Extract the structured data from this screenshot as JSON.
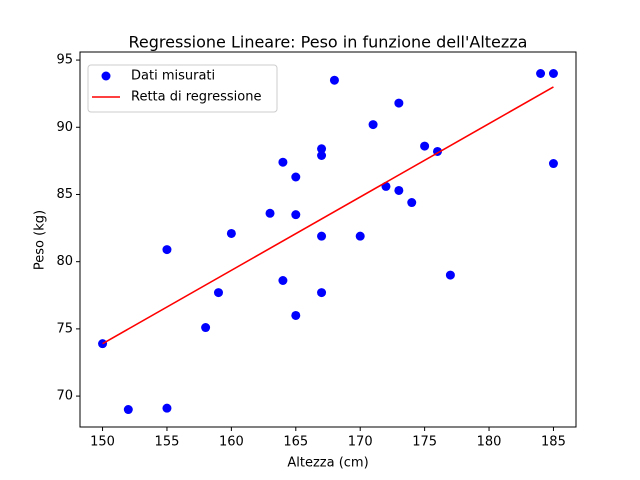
{
  "chart_data": {
    "type": "scatter",
    "title": "Regressione Lineare: Peso in funzione dell'Altezza",
    "x_label": "Altezza (cm)",
    "y_label": "Peso (kg)",
    "series": [
      {
        "name": "Dati misurati",
        "color": "#0000ff",
        "kind": "scatter",
        "x": [
          150,
          152,
          155,
          155,
          158,
          159,
          160,
          163,
          164,
          164,
          165,
          165,
          165,
          167,
          167,
          167,
          167,
          168,
          170,
          171,
          172,
          173,
          173,
          174,
          175,
          176,
          177,
          184,
          185,
          185
        ],
        "values": [
          73.9,
          69.0,
          80.9,
          69.1,
          75.1,
          77.7,
          82.1,
          83.6,
          87.4,
          78.6,
          86.3,
          83.5,
          76.0,
          88.4,
          87.9,
          81.9,
          77.7,
          93.5,
          81.9,
          90.2,
          85.6,
          91.8,
          85.3,
          84.4,
          88.6,
          88.2,
          79.0,
          94.0,
          94.0,
          87.3
        ]
      },
      {
        "name": "Retta di regressione",
        "color": "#ff0000",
        "kind": "line",
        "x": [
          150,
          185
        ],
        "values": [
          73.9,
          93.0
        ]
      }
    ],
    "xlim": [
      148.25,
      186.75
    ],
    "ylim": [
      67.7,
      95.6
    ],
    "xticks": [
      150,
      155,
      160,
      165,
      170,
      175,
      180,
      185
    ],
    "yticks": [
      70,
      75,
      80,
      85,
      90,
      95
    ],
    "grid": false,
    "legend": "upper left"
  }
}
